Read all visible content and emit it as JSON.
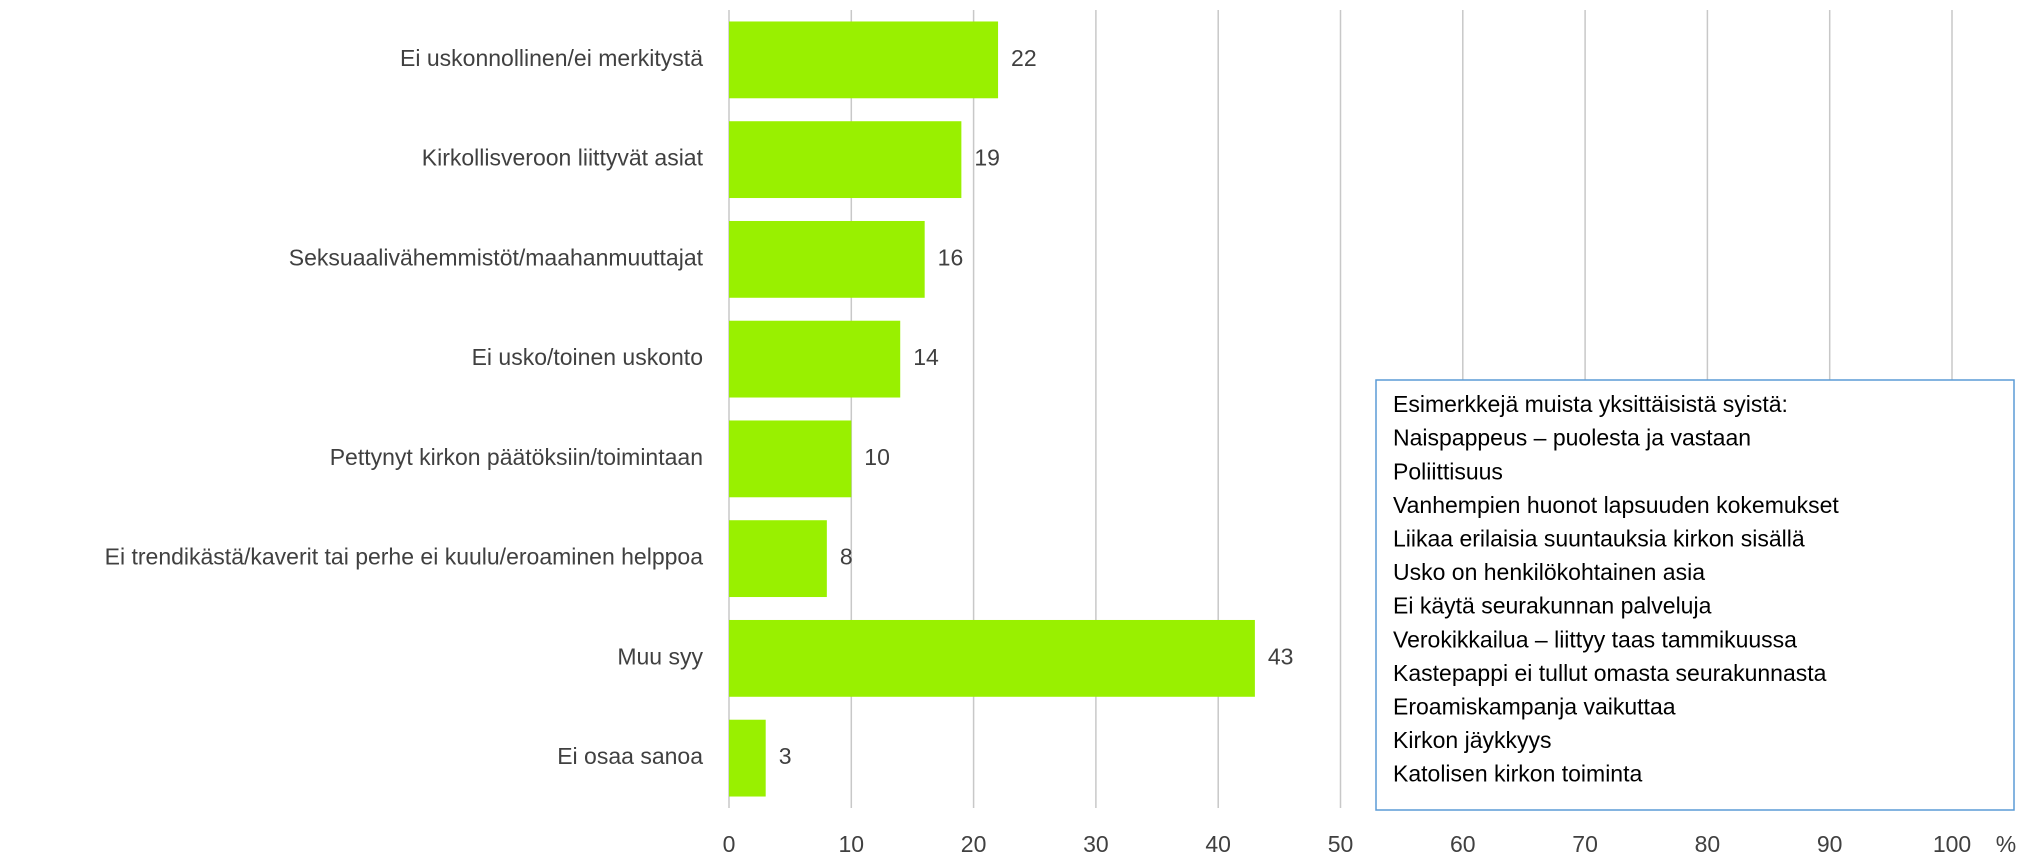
{
  "chart_data": {
    "type": "bar",
    "orientation": "horizontal",
    "categories": [
      "Ei uskonnollinen/ei merkitystä",
      "Kirkollisveroon liittyvät asiat",
      "Seksuaalivähemmistöt/maahanmuuttajat",
      "Ei usko/toinen uskonto",
      "Pettynyt kirkon päätöksiin/toimintaan",
      "Ei trendikästä/kaverit tai perhe ei kuulu/eroaminen helppoa",
      "Muu syy",
      "Ei osaa sanoa"
    ],
    "values": [
      22,
      19,
      16,
      14,
      10,
      8,
      43,
      3
    ],
    "color": "#99f000",
    "xlim": [
      0,
      100
    ],
    "xticks": [
      0,
      10,
      20,
      30,
      40,
      50,
      60,
      70,
      80,
      90,
      100
    ],
    "x_label": "%",
    "grid": true,
    "annotation": {
      "title": "Esimerkkejä muista yksittäisistä syistä:",
      "items": [
        "Naispappeus – puolesta ja vastaan",
        "Poliittisuus",
        "Vanhempien huonot lapsuuden kokemukset",
        "Liikaa erilaisia suuntauksia kirkon sisällä",
        "Usko on henkilökohtainen asia",
        "Ei käytä seurakunnan palveluja",
        "Verokikkailua – liittyy taas tammikuussa",
        "Kastepappi ei tullut omasta seurakunnasta",
        "Eroamiskampanja vaikuttaa",
        "Kirkon jäykkyys",
        "Katolisen kirkon toiminta"
      ]
    }
  }
}
